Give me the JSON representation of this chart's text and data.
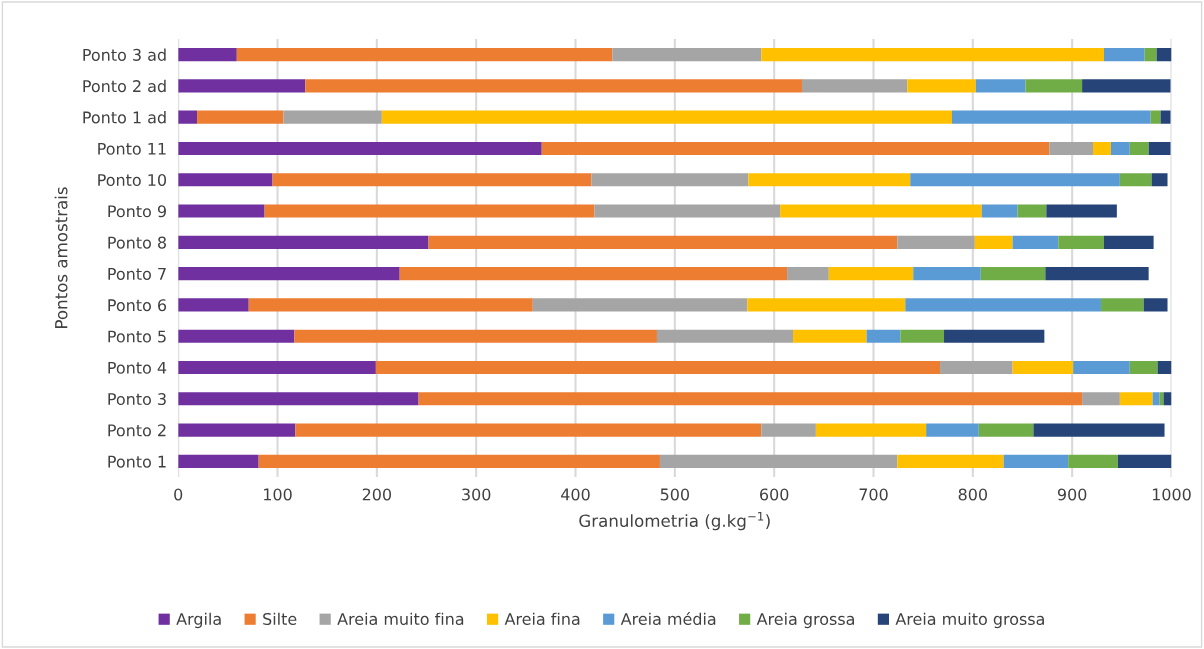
{
  "chart_data": {
    "type": "bar",
    "orientation": "horizontal",
    "stacked": true,
    "xlabel": "Granulometria (g.kg$^{−1}$)",
    "ylabel": "Pontos amostrais",
    "categories": [
      "Ponto 3 ad",
      "Ponto 2 ad",
      "Ponto 1 ad",
      "Ponto 11",
      "Ponto 10",
      "Ponto 9",
      "Ponto 8",
      "Ponto 7",
      "Ponto 6",
      "Ponto 5",
      "Ponto 4",
      "Ponto 3",
      "Ponto 2",
      "Ponto 1"
    ],
    "series": [
      {
        "name": "Argila",
        "color": "#7030a0",
        "values": [
          59,
          128,
          19,
          366,
          95,
          87,
          252,
          223,
          71,
          117,
          199,
          242,
          118,
          81
        ]
      },
      {
        "name": "Silte",
        "color": "#ed7d31",
        "values": [
          378,
          500,
          87,
          511,
          321,
          332,
          472,
          390,
          286,
          365,
          568,
          668,
          469,
          404
        ]
      },
      {
        "name": "Areia muito fina",
        "color": "#a5a5a5",
        "values": [
          150,
          106,
          99,
          44,
          158,
          187,
          78,
          42,
          216,
          137,
          73,
          38,
          55,
          239
        ]
      },
      {
        "name": "Areia fina",
        "color": "#ffc000",
        "values": [
          345,
          69,
          574,
          18,
          163,
          203,
          38,
          85,
          159,
          74,
          61,
          33,
          111,
          107
        ]
      },
      {
        "name": "Areia média",
        "color": "#5b9bd5",
        "values": [
          41,
          50,
          200,
          19,
          211,
          36,
          46,
          68,
          197,
          34,
          57,
          7,
          53,
          65
        ]
      },
      {
        "name": "Areia grossa",
        "color": "#70ad47",
        "values": [
          12,
          57,
          10,
          19,
          32,
          29,
          46,
          65,
          43,
          44,
          28,
          4,
          55,
          50
        ]
      },
      {
        "name": "Areia muito grossa",
        "color": "#264478",
        "values": [
          15,
          89,
          10,
          22,
          16,
          71,
          50,
          104,
          24,
          101,
          14,
          8,
          132,
          54
        ]
      }
    ],
    "xlim": [
      0,
      1000
    ],
    "xticks": [
      0,
      100,
      200,
      300,
      400,
      500,
      600,
      700,
      800,
      900,
      1000
    ],
    "grid": "x",
    "legend": "bottom"
  }
}
